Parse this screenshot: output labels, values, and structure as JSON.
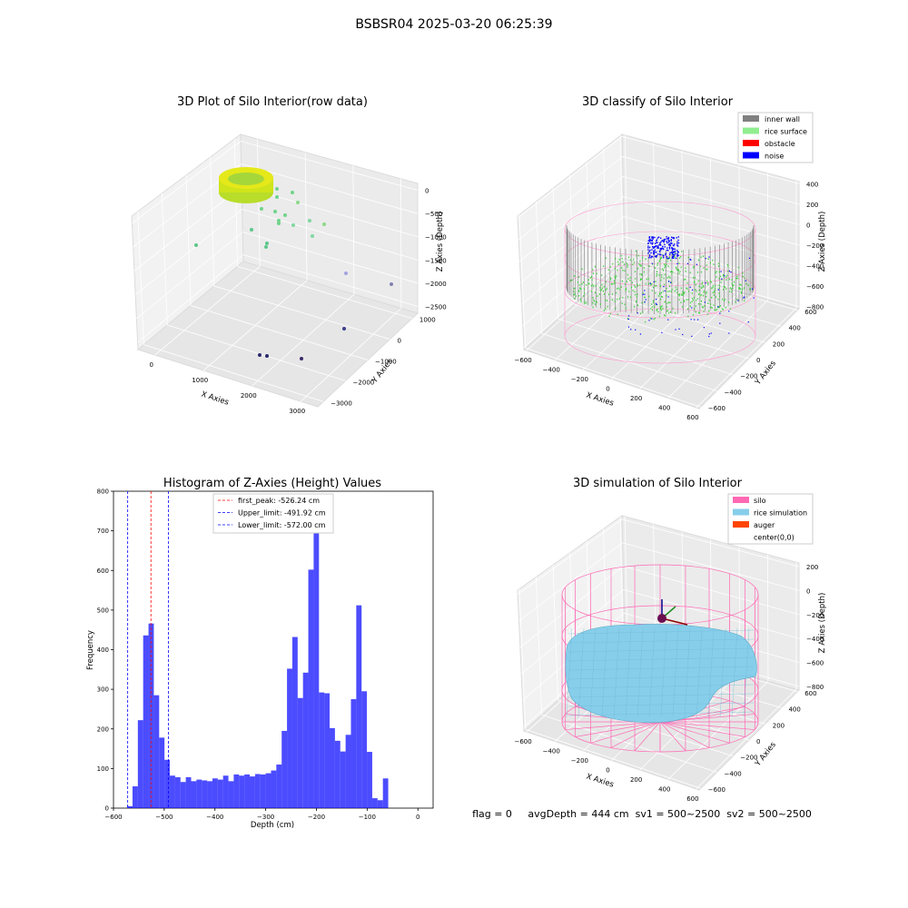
{
  "suptitle": "BSBSR04 2025-03-20 06:25:39",
  "chart_data": [
    {
      "type": "scatter",
      "title": "3D Plot of Silo Interior(row data)",
      "xlabel": "X Axies",
      "ylabel": "Y Axies",
      "zlabel": "Z Axies (Depth)",
      "x_ticks": [
        "0",
        "1000",
        "2000",
        "3000"
      ],
      "y_ticks": [
        "−3000",
        "−2000",
        "−1000",
        "0",
        "1000"
      ],
      "z_ticks": [
        "−2500",
        "−2000",
        "−1500",
        "−1000",
        "−500",
        "0"
      ],
      "grid": true
    },
    {
      "type": "scatter",
      "title": "3D classify of Silo Interior",
      "xlabel": "X Axies",
      "ylabel": "Y Axies",
      "zlabel": "Z Axies (Depth)",
      "x_ticks": [
        "−600",
        "−400",
        "−200",
        "0",
        "200",
        "400",
        "600"
      ],
      "y_ticks": [
        "−600",
        "−400",
        "−200",
        "0",
        "200",
        "400",
        "600"
      ],
      "z_ticks": [
        "−800",
        "−600",
        "−400",
        "−200",
        "0",
        "200",
        "400"
      ],
      "legend": [
        {
          "label": "inner wall",
          "color": "#808080"
        },
        {
          "label": "rice surface",
          "color": "#90ee90"
        },
        {
          "label": "obstacle",
          "color": "#ff0000"
        },
        {
          "label": "noise",
          "color": "#0000ff"
        }
      ],
      "legend_position": "top-right",
      "grid": true
    },
    {
      "type": "bar",
      "title": "Histogram of Z-Axies (Height) Values",
      "xlabel": "Depth (cm)",
      "ylabel": "Frequency",
      "xlim": [
        -600,
        30
      ],
      "ylim": [
        0,
        800
      ],
      "x_ticks": [
        -600,
        -500,
        -400,
        -300,
        -200,
        -100,
        0
      ],
      "y_ticks": [
        0,
        100,
        200,
        300,
        400,
        500,
        600,
        700,
        800
      ],
      "bar_color": "#0000ff",
      "bins": {
        "start": -573,
        "width": 10.5,
        "counts": [
          5,
          55,
          222,
          436,
          466,
          285,
          178,
          122,
          82,
          78,
          66,
          78,
          68,
          72,
          70,
          68,
          75,
          72,
          82,
          68,
          85,
          82,
          85,
          80,
          86,
          85,
          88,
          95,
          110,
          195,
          352,
          432,
          278,
          342,
          602,
          765,
          292,
          290,
          202,
          170,
          143,
          185,
          275,
          512,
          295,
          142,
          25,
          20,
          75
        ]
      },
      "lines": [
        {
          "label": "first_peak: -526.24 cm",
          "x": -526.24,
          "color": "#ff0000"
        },
        {
          "label": "Upper_limit: -491.92 cm",
          "x": -491.92,
          "color": "#0000ff"
        },
        {
          "label": "Lower_limit: -572.00 cm",
          "x": -572.0,
          "color": "#0000ff"
        }
      ],
      "legend_position": "top-center"
    },
    {
      "type": "area",
      "title": "3D simulation of Silo Interior",
      "xlabel": "X Axies",
      "ylabel": "Y Axies",
      "zlabel": "Z Axies (Depth)",
      "x_ticks": [
        "−600",
        "−400",
        "−200",
        "0",
        "200",
        "400",
        "600"
      ],
      "y_ticks": [
        "−600",
        "−400",
        "−200",
        "0",
        "200",
        "400",
        "600"
      ],
      "z_ticks": [
        "−800",
        "−600",
        "−400",
        "−200",
        "0",
        "200"
      ],
      "legend": [
        {
          "label": "silo",
          "color": "#ff69b4"
        },
        {
          "label": "rice simulation",
          "color": "#87ceeb"
        },
        {
          "label": "auger",
          "color": "#ff4500"
        },
        {
          "label": "center(0,0)",
          "color": "#ffffff"
        }
      ],
      "legend_position": "top-right",
      "grid": true
    }
  ],
  "status_line": "flag = 0     avgDepth = 444 cm  sv1 = 500~2500  sv2 = 500~2500"
}
